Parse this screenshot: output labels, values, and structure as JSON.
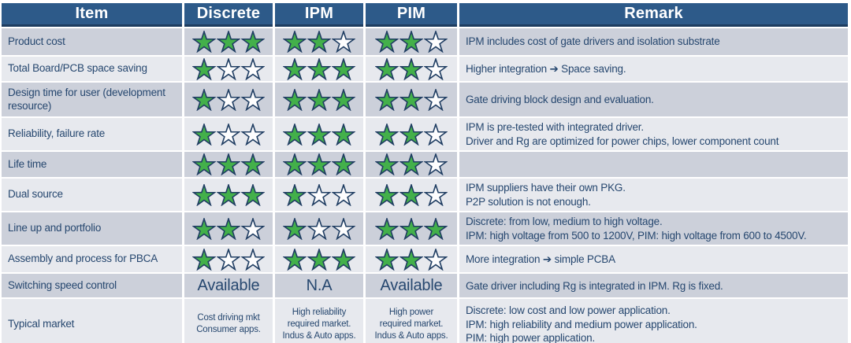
{
  "colors": {
    "header_bg": "#2d5a89",
    "header_border": "#1d3c5f",
    "row_dark": "#ccd0da",
    "row_light": "#e7e9ee",
    "text_navy": "#26476f",
    "star_green": "#43b04a",
    "star_empty": "#fdfdfe",
    "star_outline": "#1f3d62"
  },
  "header": {
    "item": "Item",
    "discrete": "Discrete",
    "ipm": "IPM",
    "pim": "PIM",
    "remark": "Remark"
  },
  "stars": {
    "total": 3,
    "filled_color": "#43b04a",
    "empty_color": "#fdfdfe",
    "outline_color": "#1f3d62"
  },
  "rows": [
    {
      "item": "Product cost",
      "discrete": {
        "stars": 3
      },
      "ipm": {
        "stars": 2
      },
      "pim": {
        "stars": 2
      },
      "remark": [
        "IPM includes cost of gate drivers and isolation substrate"
      ]
    },
    {
      "item": "Total Board/PCB space saving",
      "discrete": {
        "stars": 1
      },
      "ipm": {
        "stars": 3
      },
      "pim": {
        "stars": 2
      },
      "remark": [
        "Higher integration ➔ Space saving."
      ]
    },
    {
      "item": "Design time for user (development resource)",
      "discrete": {
        "stars": 1
      },
      "ipm": {
        "stars": 3
      },
      "pim": {
        "stars": 2
      },
      "remark": [
        "Gate driving block design and evaluation."
      ]
    },
    {
      "item": "Reliability, failure rate",
      "discrete": {
        "stars": 1
      },
      "ipm": {
        "stars": 3
      },
      "pim": {
        "stars": 2
      },
      "remark": [
        "IPM is pre-tested with integrated driver.",
        "Driver and Rg are optimized for power chips, lower component count"
      ]
    },
    {
      "item": "Life time",
      "discrete": {
        "stars": 3
      },
      "ipm": {
        "stars": 3
      },
      "pim": {
        "stars": 2
      },
      "remark": []
    },
    {
      "item": "Dual source",
      "discrete": {
        "stars": 3
      },
      "ipm": {
        "stars": 1
      },
      "pim": {
        "stars": 2
      },
      "remark": [
        "IPM suppliers have their own PKG.",
        "P2P solution is not enough."
      ]
    },
    {
      "item": "Line up and portfolio",
      "discrete": {
        "stars": 2
      },
      "ipm": {
        "stars": 1
      },
      "pim": {
        "stars": 3
      },
      "remark": [
        "Discrete: from low, medium to high voltage.",
        "IPM: high voltage from 500 to 1200V, PIM: high voltage from 600 to 4500V."
      ]
    },
    {
      "item": "Assembly and process for PBCA",
      "discrete": {
        "stars": 1
      },
      "ipm": {
        "stars": 3
      },
      "pim": {
        "stars": 2
      },
      "remark": [
        "More integration ➔ simple PCBA"
      ]
    },
    {
      "item": "Switching speed control",
      "discrete": {
        "text": "Available"
      },
      "ipm": {
        "text": "N.A"
      },
      "pim": {
        "text": "Available"
      },
      "remark": [
        "Gate driver including Rg is integrated in IPM. Rg is fixed."
      ]
    },
    {
      "item": "Typical market",
      "discrete": {
        "small": [
          "Cost driving mkt",
          "Consumer apps."
        ]
      },
      "ipm": {
        "small": [
          "High reliability",
          "required market.",
          "Indus & Auto apps."
        ]
      },
      "pim": {
        "small": [
          "High power",
          "required market.",
          "Indus & Auto apps."
        ]
      },
      "remark": [
        "Discrete: low cost and low power application.",
        "IPM: high reliability and medium power application.",
        "PIM: high power application."
      ]
    }
  ]
}
